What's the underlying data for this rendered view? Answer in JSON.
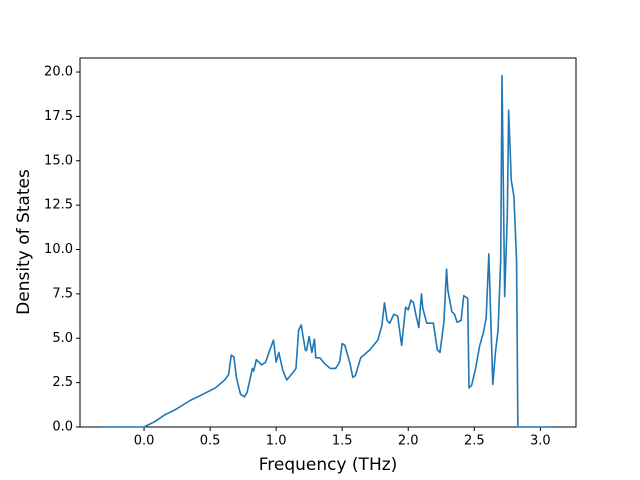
{
  "chart_data": {
    "type": "line",
    "xlabel": "Frequency (THz)",
    "ylabel": "Density of States",
    "x": [
      -0.32,
      0,
      0.08,
      0.16,
      0.23,
      0.35,
      0.42,
      0.54,
      0.61,
      0.64,
      0.66,
      0.68,
      0.7,
      0.73,
      0.76,
      0.78,
      0.82,
      0.83,
      0.85,
      0.89,
      0.92,
      0.95,
      0.98,
      1.0,
      1.02,
      1.05,
      1.08,
      1.12,
      1.15,
      1.17,
      1.19,
      1.22,
      1.23,
      1.25,
      1.27,
      1.29,
      1.3,
      1.33,
      1.37,
      1.41,
      1.45,
      1.48,
      1.5,
      1.52,
      1.56,
      1.58,
      1.6,
      1.64,
      1.71,
      1.77,
      1.8,
      1.82,
      1.84,
      1.86,
      1.89,
      1.92,
      1.95,
      1.98,
      2.0,
      2.02,
      2.04,
      2.06,
      2.08,
      2.1,
      2.11,
      2.14,
      2.19,
      2.22,
      2.24,
      2.27,
      2.29,
      2.3,
      2.33,
      2.35,
      2.37,
      2.4,
      2.42,
      2.45,
      2.46,
      2.48,
      2.51,
      2.54,
      2.57,
      2.59,
      2.61,
      2.64,
      2.66,
      2.68,
      2.7,
      2.71,
      2.73,
      2.75,
      2.76,
      2.78,
      2.8,
      2.82,
      2.83,
      3.1
    ],
    "values": [
      0,
      0,
      0.3,
      0.7,
      0.95,
      1.5,
      1.75,
      2.2,
      2.65,
      2.95,
      4.05,
      3.95,
      2.75,
      1.85,
      1.7,
      1.95,
      3.3,
      3.15,
      3.8,
      3.5,
      3.65,
      4.3,
      4.9,
      3.65,
      4.2,
      3.2,
      2.65,
      3.0,
      3.3,
      5.45,
      5.75,
      4.35,
      4.3,
      5.1,
      4.2,
      4.95,
      3.9,
      3.9,
      3.55,
      3.3,
      3.3,
      3.65,
      4.7,
      4.6,
      3.55,
      2.8,
      2.9,
      3.9,
      4.35,
      4.9,
      5.7,
      7.0,
      6.0,
      5.85,
      6.35,
      6.25,
      4.6,
      6.75,
      6.6,
      7.15,
      7.0,
      6.25,
      5.6,
      7.5,
      6.7,
      5.85,
      5.85,
      4.35,
      4.2,
      5.9,
      8.9,
      7.7,
      6.5,
      6.35,
      5.9,
      6.0,
      7.4,
      7.25,
      2.2,
      2.35,
      3.3,
      4.55,
      5.35,
      6.15,
      9.75,
      2.4,
      4.2,
      5.45,
      9.4,
      19.8,
      7.35,
      11.9,
      17.85,
      13.9,
      13.0,
      9.4,
      0,
      0
    ],
    "color": "#1f77b4",
    "xlim": [
      -0.485,
      3.27
    ],
    "xticks": [
      {
        "value": 0,
        "label": "0.0"
      },
      {
        "value": 0.5,
        "label": "0.5"
      },
      {
        "value": 1,
        "label": "1.0"
      },
      {
        "value": 1.5,
        "label": "1.5"
      },
      {
        "value": 2,
        "label": "2.0"
      },
      {
        "value": 2.5,
        "label": "2.5"
      },
      {
        "value": 3,
        "label": "3.0"
      }
    ],
    "ylim": [
      0,
      20.79
    ],
    "yticks": [
      {
        "value": 0,
        "label": "0.0"
      },
      {
        "value": 2.5,
        "label": "2.5"
      },
      {
        "value": 5,
        "label": "5.0"
      },
      {
        "value": 7.5,
        "label": "7.5"
      },
      {
        "value": 10,
        "label": "10.0"
      },
      {
        "value": 12.5,
        "label": "12.5"
      },
      {
        "value": 15,
        "label": "15.0"
      },
      {
        "value": 17.5,
        "label": "17.5"
      },
      {
        "value": 20,
        "label": "20.0"
      }
    ],
    "grid": false
  }
}
